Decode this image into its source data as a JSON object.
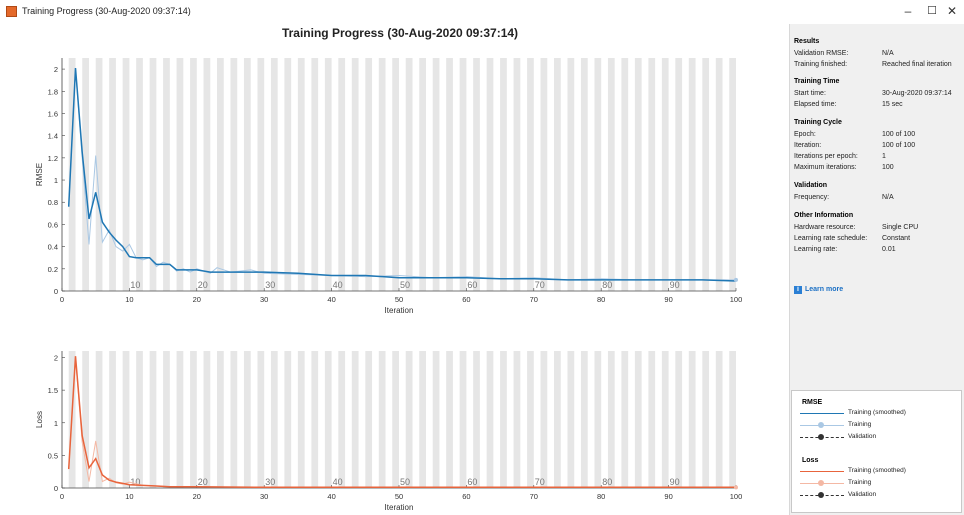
{
  "window": {
    "title": "Training Progress (30-Aug-2020 09:37:14)",
    "controls": [
      "–",
      "☐",
      "✕"
    ]
  },
  "main_title": "Training Progress (30-Aug-2020 09:37:14)",
  "colors": {
    "training_smoothed_rmse": "#1f77b4",
    "training_rmse": "#aac8e4",
    "training_smoothed_loss": "#e8643c",
    "training_loss": "#f4b8a4",
    "validation": "#333333",
    "stripe": "#e6e6e6"
  },
  "chart_data": [
    {
      "type": "line",
      "ylabel": "RMSE",
      "xlabel": "Iteration",
      "xlim": [
        0,
        100
      ],
      "ylim": [
        0,
        2.1
      ],
      "xticks": [
        0,
        10,
        20,
        30,
        40,
        50,
        60,
        70,
        80,
        90,
        100
      ],
      "yticks": [
        0,
        0.2,
        0.4,
        0.6,
        0.8,
        1,
        1.2,
        1.4,
        1.6,
        1.8,
        2
      ],
      "epoch_labels": [
        10,
        20,
        30,
        40,
        50,
        60,
        70,
        80,
        90
      ],
      "epochs_shaded": true,
      "series": [
        {
          "name": "Training (smoothed)",
          "x": [
            1,
            2,
            3,
            4,
            5,
            6,
            7,
            8,
            9,
            10,
            11,
            12,
            13,
            14,
            15,
            16,
            17,
            18,
            19,
            20,
            22,
            25,
            28,
            30,
            35,
            40,
            45,
            50,
            55,
            60,
            65,
            70,
            75,
            80,
            85,
            90,
            95,
            100
          ],
          "values": [
            0.76,
            2.01,
            1.25,
            0.65,
            0.89,
            0.62,
            0.53,
            0.46,
            0.4,
            0.31,
            0.3,
            0.3,
            0.3,
            0.24,
            0.24,
            0.24,
            0.19,
            0.19,
            0.19,
            0.19,
            0.17,
            0.17,
            0.17,
            0.17,
            0.16,
            0.14,
            0.14,
            0.12,
            0.12,
            0.12,
            0.11,
            0.11,
            0.1,
            0.1,
            0.1,
            0.1,
            0.1,
            0.09
          ]
        },
        {
          "name": "Training",
          "x": [
            1,
            2,
            3,
            4,
            5,
            6,
            7,
            8,
            9,
            10,
            11,
            12,
            13,
            14,
            15,
            16,
            17,
            18,
            19,
            20,
            22,
            23,
            25,
            28,
            30,
            35,
            40,
            45,
            50,
            55,
            60,
            65,
            70,
            75,
            80,
            85,
            90,
            95,
            100
          ],
          "values": [
            0.76,
            2.0,
            1.2,
            0.42,
            1.22,
            0.44,
            0.55,
            0.4,
            0.36,
            0.42,
            0.3,
            0.28,
            0.3,
            0.22,
            0.26,
            0.24,
            0.18,
            0.2,
            0.17,
            0.2,
            0.16,
            0.21,
            0.17,
            0.19,
            0.16,
            0.15,
            0.14,
            0.13,
            0.14,
            0.12,
            0.13,
            0.11,
            0.12,
            0.1,
            0.11,
            0.1,
            0.1,
            0.1,
            0.1
          ]
        }
      ]
    },
    {
      "type": "line",
      "ylabel": "Loss",
      "xlabel": "Iteration",
      "xlim": [
        0,
        100
      ],
      "ylim": [
        0,
        2.1
      ],
      "xticks": [
        0,
        10,
        20,
        30,
        40,
        50,
        60,
        70,
        80,
        90,
        100
      ],
      "yticks": [
        0,
        0.5,
        1,
        1.5,
        2
      ],
      "epoch_labels": [
        10,
        20,
        30,
        40,
        50,
        60,
        70,
        80,
        90
      ],
      "epochs_shaded": true,
      "series": [
        {
          "name": "Training (smoothed)",
          "x": [
            1,
            2,
            3,
            4,
            5,
            6,
            7,
            8,
            9,
            10,
            12,
            14,
            16,
            20,
            30,
            40,
            50,
            60,
            70,
            80,
            90,
            100
          ],
          "values": [
            0.29,
            2.02,
            0.8,
            0.31,
            0.45,
            0.2,
            0.12,
            0.09,
            0.07,
            0.05,
            0.04,
            0.03,
            0.02,
            0.02,
            0.01,
            0.01,
            0.01,
            0.01,
            0.01,
            0.01,
            0.01,
            0.01
          ]
        },
        {
          "name": "Training",
          "x": [
            1,
            2,
            3,
            4,
            5,
            6,
            7,
            8,
            9,
            10,
            12,
            14,
            16,
            20,
            30,
            40,
            50,
            60,
            70,
            80,
            90,
            100
          ],
          "values": [
            0.29,
            2.0,
            0.7,
            0.1,
            0.72,
            0.1,
            0.15,
            0.08,
            0.06,
            0.09,
            0.04,
            0.03,
            0.02,
            0.02,
            0.01,
            0.01,
            0.01,
            0.01,
            0.01,
            0.01,
            0.01,
            0.01
          ]
        }
      ]
    }
  ],
  "side_panel": {
    "results": {
      "heading": "Results",
      "rows": [
        {
          "label": "Validation RMSE:",
          "value": "N/A"
        },
        {
          "label": "Training finished:",
          "value": "Reached final iteration"
        }
      ]
    },
    "training_time": {
      "heading": "Training Time",
      "rows": [
        {
          "label": "Start time:",
          "value": "30-Aug-2020 09:37:14"
        },
        {
          "label": "Elapsed time:",
          "value": "15 sec"
        }
      ]
    },
    "training_cycle": {
      "heading": "Training Cycle",
      "rows": [
        {
          "label": "Epoch:",
          "value": "100 of 100"
        },
        {
          "label": "Iteration:",
          "value": "100 of 100"
        },
        {
          "label": "Iterations per epoch:",
          "value": "1"
        },
        {
          "label": "Maximum iterations:",
          "value": "100"
        }
      ]
    },
    "validation": {
      "heading": "Validation",
      "rows": [
        {
          "label": "Frequency:",
          "value": "N/A"
        }
      ]
    },
    "other_information": {
      "heading": "Other Information",
      "rows": [
        {
          "label": "Hardware resource:",
          "value": "Single CPU"
        },
        {
          "label": "Learning rate schedule:",
          "value": "Constant"
        },
        {
          "label": "Learning rate:",
          "value": "0.01"
        }
      ]
    },
    "learn_more": "Learn more",
    "learn_more_icon": "info-icon"
  },
  "legend": {
    "rmse": {
      "heading": "RMSE",
      "items": [
        "Training (smoothed)",
        "Training",
        "Validation"
      ]
    },
    "loss": {
      "heading": "Loss",
      "items": [
        "Training (smoothed)",
        "Training",
        "Validation"
      ]
    }
  }
}
